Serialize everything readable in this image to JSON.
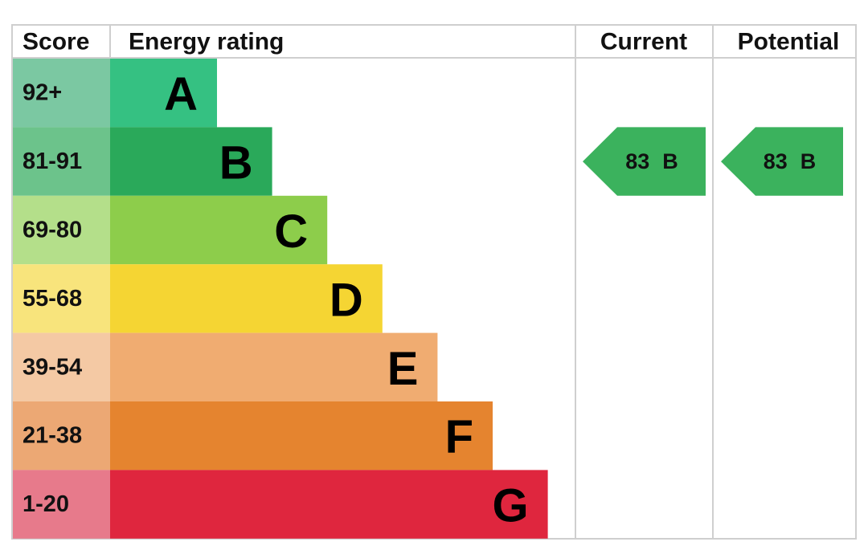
{
  "header": {
    "score": "Score",
    "rating": "Energy rating",
    "current": "Current",
    "potential": "Potential"
  },
  "rows": [
    {
      "score": "92+",
      "band": "A"
    },
    {
      "score": "81-91",
      "band": "B"
    },
    {
      "score": "69-80",
      "band": "C"
    },
    {
      "score": "55-68",
      "band": "D"
    },
    {
      "score": "39-54",
      "band": "E"
    },
    {
      "score": "21-38",
      "band": "F"
    },
    {
      "score": "1-20",
      "band": "G"
    }
  ],
  "current": {
    "value": 83,
    "band": "B"
  },
  "potential": {
    "value": 83,
    "band": "B"
  }
}
